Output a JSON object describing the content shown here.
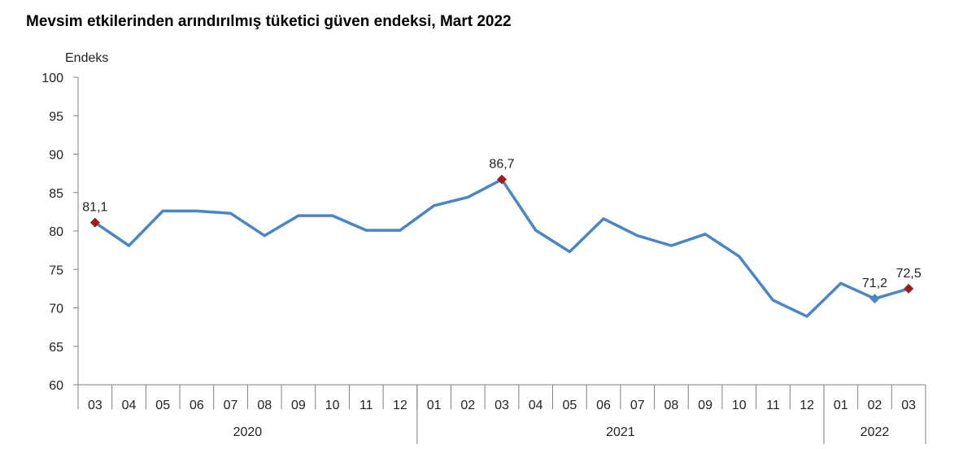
{
  "title": "Mevsim etkilerinden arındırılmış tüketici güven endeksi, Mart 2022",
  "chart_data": {
    "type": "line",
    "title": "Mevsim etkilerinden arındırılmış tüketici güven endeksi, Mart 2022",
    "ylabel": "Endeks",
    "ylim": [
      60,
      100
    ],
    "yticks": [
      "60",
      "65",
      "70",
      "75",
      "80",
      "85",
      "90",
      "95",
      "100"
    ],
    "grid": false,
    "legend": "none",
    "categories": [
      "03",
      "04",
      "05",
      "06",
      "07",
      "08",
      "09",
      "10",
      "11",
      "12",
      "01",
      "02",
      "03",
      "04",
      "05",
      "06",
      "07",
      "08",
      "09",
      "10",
      "11",
      "12",
      "01",
      "02",
      "03"
    ],
    "years": [
      {
        "label": "2020",
        "count": 10
      },
      {
        "label": "2021",
        "count": 12
      },
      {
        "label": "2022",
        "count": 3
      }
    ],
    "series": [
      {
        "values": [
          81.1,
          78.1,
          82.6,
          82.6,
          82.3,
          79.4,
          82.0,
          82.0,
          80.1,
          80.1,
          83.3,
          84.4,
          86.7,
          80.1,
          77.3,
          81.6,
          79.4,
          78.1,
          79.6,
          76.7,
          71.0,
          68.9,
          73.2,
          71.2,
          72.5
        ]
      }
    ],
    "labels": [
      {
        "index": 0,
        "text": "81,1",
        "marker": "red"
      },
      {
        "index": 12,
        "text": "86,7",
        "marker": "red"
      },
      {
        "index": 23,
        "text": "71,2",
        "marker": "blue"
      },
      {
        "index": 24,
        "text": "72,5",
        "marker": "red"
      }
    ],
    "colors": {
      "line": "#4a86c5",
      "marker_red": "#a01c1c",
      "marker_blue": "#4a86c5",
      "axis": "#808080"
    }
  }
}
